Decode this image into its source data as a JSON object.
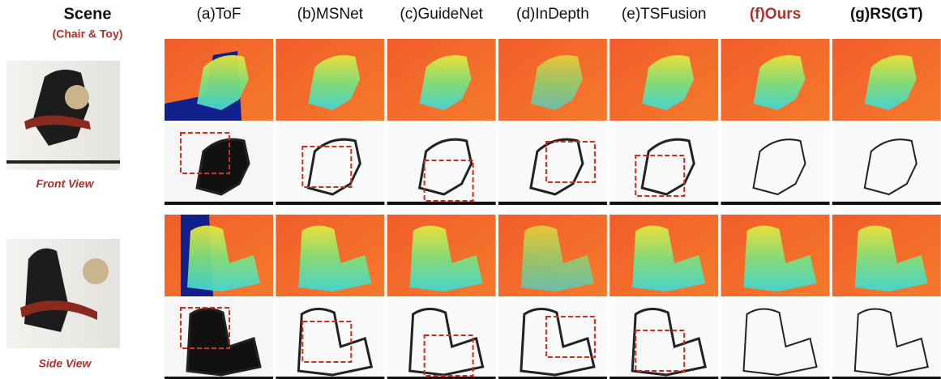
{
  "scene": {
    "title": "Scene",
    "subtitle": "(Chair & Toy)",
    "views": [
      "Front View",
      "Side View"
    ]
  },
  "columns": [
    "(a)ToF",
    "(b)MSNet",
    "(c)GuideNet",
    "(d)InDepth",
    "(e)TSFusion",
    "(f)Ours",
    "(g)RS(GT)"
  ]
}
